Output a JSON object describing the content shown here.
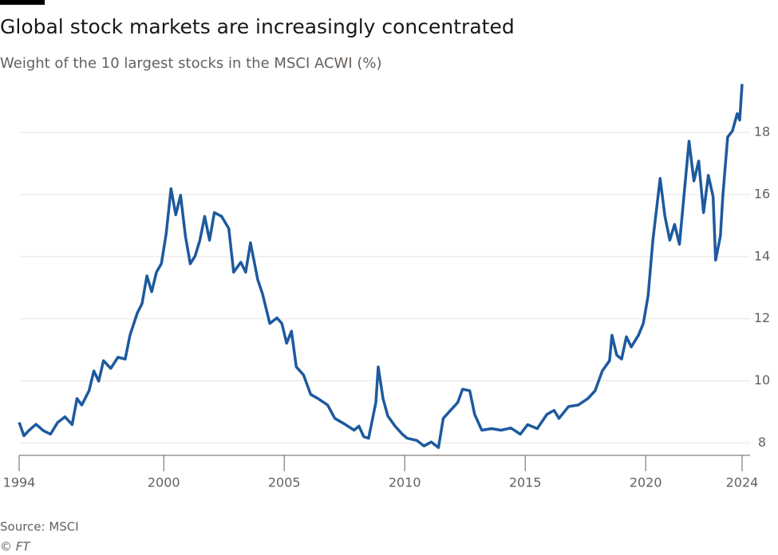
{
  "chart_data": {
    "type": "line",
    "title": "Global stock markets are increasingly concentrated",
    "subtitle": "Weight of the 10 largest stocks in the MSCI ACWI (%)",
    "source": "Source: MSCI",
    "credit": "© FT",
    "x": [
      1994.0,
      1994.2,
      1994.4,
      1994.7,
      1995.0,
      1995.3,
      1995.6,
      1995.9,
      1996.2,
      1996.4,
      1996.6,
      1996.9,
      1997.1,
      1997.3,
      1997.5,
      1997.8,
      1998.1,
      1998.4,
      1998.6,
      1998.9,
      1999.1,
      1999.3,
      1999.5,
      1999.7,
      1999.9,
      2000.1,
      2000.3,
      2000.5,
      2000.7,
      2000.9,
      2001.1,
      2001.3,
      2001.5,
      2001.7,
      2001.9,
      2002.1,
      2002.4,
      2002.7,
      2002.9,
      2003.2,
      2003.4,
      2003.6,
      2003.9,
      2004.1,
      2004.4,
      2004.7,
      2004.9,
      2005.1,
      2005.3,
      2005.5,
      2005.8,
      2006.1,
      2006.4,
      2006.8,
      2007.1,
      2007.5,
      2007.9,
      2008.1,
      2008.3,
      2008.5,
      2008.8,
      2008.9,
      2009.1,
      2009.3,
      2009.6,
      2009.9,
      2010.1,
      2010.5,
      2010.8,
      2011.1,
      2011.4,
      2011.6,
      2011.9,
      2012.2,
      2012.4,
      2012.7,
      2012.9,
      2013.2,
      2013.6,
      2014.0,
      2014.4,
      2014.8,
      2015.1,
      2015.5,
      2015.9,
      2016.2,
      2016.4,
      2016.8,
      2017.2,
      2017.6,
      2017.9,
      2018.2,
      2018.5,
      2018.6,
      2018.8,
      2019.0,
      2019.2,
      2019.4,
      2019.7,
      2019.9,
      2020.1,
      2020.3,
      2020.6,
      2020.8,
      2021.0,
      2021.2,
      2021.4,
      2021.6,
      2021.8,
      2022.0,
      2022.2,
      2022.4,
      2022.6,
      2022.8,
      2022.9,
      2023.1,
      2023.2,
      2023.4,
      2023.6,
      2023.8,
      2023.9,
      2024.0
    ],
    "series": [
      {
        "color": "#1d5a9e",
        "values": [
          8.66,
          8.23,
          8.4,
          8.6,
          8.4,
          8.28,
          8.66,
          8.84,
          8.59,
          9.43,
          9.22,
          9.68,
          10.32,
          9.99,
          10.65,
          10.4,
          10.76,
          10.7,
          11.47,
          12.18,
          12.49,
          13.38,
          12.87,
          13.5,
          13.77,
          14.73,
          16.19,
          15.35,
          15.98,
          14.66,
          13.77,
          14.02,
          14.53,
          15.3,
          14.53,
          15.42,
          15.3,
          14.91,
          13.5,
          13.82,
          13.5,
          14.45,
          13.26,
          12.8,
          11.85,
          12.03,
          11.85,
          11.21,
          11.6,
          10.45,
          10.19,
          9.56,
          9.43,
          9.22,
          8.79,
          8.61,
          8.41,
          8.54,
          8.2,
          8.15,
          9.3,
          10.45,
          9.43,
          8.87,
          8.54,
          8.28,
          8.15,
          8.08,
          7.9,
          8.03,
          7.85,
          8.79,
          9.05,
          9.3,
          9.73,
          9.68,
          8.92,
          8.41,
          8.46,
          8.41,
          8.48,
          8.28,
          8.59,
          8.46,
          8.92,
          9.05,
          8.79,
          9.17,
          9.22,
          9.43,
          9.68,
          10.32,
          10.65,
          11.47,
          10.83,
          10.7,
          11.42,
          11.09,
          11.47,
          11.85,
          12.74,
          14.53,
          16.52,
          15.3,
          14.53,
          15.04,
          14.4,
          16.06,
          17.72,
          16.44,
          17.08,
          15.42,
          16.62,
          15.93,
          13.89,
          14.66,
          15.93,
          17.85,
          18.05,
          18.61,
          18.4,
          19.56
        ]
      }
    ],
    "xlim": [
      1994,
      2024.1
    ],
    "xticks": [
      1994,
      2000,
      2005,
      2010,
      2015,
      2020,
      2024
    ],
    "ylim": [
      7.6,
      19.7
    ],
    "yticks": [
      8,
      10,
      12,
      14,
      16,
      18
    ],
    "grid": true
  }
}
